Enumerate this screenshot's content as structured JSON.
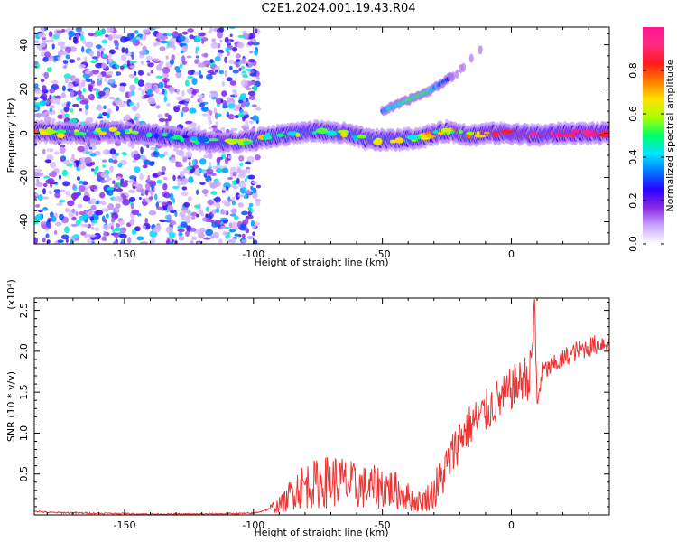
{
  "title": "C2E1.2024.001.19.43.R04",
  "chart_data": [
    {
      "type": "heatmap",
      "xlabel": "Height of straight line (km)",
      "ylabel": "Frequency (Hz)",
      "xlim": [
        -185,
        38
      ],
      "ylim": [
        -50,
        48
      ],
      "xticks": [
        -150,
        -100,
        -50,
        0
      ],
      "yticks": [
        -40,
        -20,
        0,
        20,
        40
      ],
      "colorbar": {
        "label": "Normalized spectral amplitude",
        "range": [
          0.0,
          1.0
        ],
        "ticks": [
          0.0,
          0.2,
          0.4,
          0.6,
          0.8
        ],
        "colormap": [
          "#ffffff",
          "#c9a6ff",
          "#8a2be2",
          "#2a00ff",
          "#0078ff",
          "#00e5ff",
          "#00ff6a",
          "#aaff00",
          "#ffe100",
          "#ff7a00",
          "#ff1a1a",
          "#ff2a80",
          "#ff1493"
        ]
      },
      "signal_track": [
        {
          "x": -185,
          "y": 1,
          "amp": 0.55
        },
        {
          "x": -175,
          "y": 0,
          "amp": 0.5
        },
        {
          "x": -165,
          "y": 0,
          "amp": 0.5
        },
        {
          "x": -155,
          "y": 1,
          "amp": 0.45
        },
        {
          "x": -145,
          "y": 0,
          "amp": 0.35
        },
        {
          "x": -130,
          "y": -2,
          "amp": 0.3
        },
        {
          "x": -115,
          "y": -4,
          "amp": 0.3
        },
        {
          "x": -105,
          "y": -4,
          "amp": 0.45
        },
        {
          "x": -95,
          "y": -2,
          "amp": 0.45
        },
        {
          "x": -85,
          "y": 0,
          "amp": 0.45
        },
        {
          "x": -75,
          "y": 1,
          "amp": 0.45
        },
        {
          "x": -65,
          "y": 0,
          "amp": 0.45
        },
        {
          "x": -55,
          "y": -3,
          "amp": 0.5
        },
        {
          "x": -45,
          "y": -3,
          "amp": 0.5
        },
        {
          "x": -35,
          "y": -2,
          "amp": 0.55
        },
        {
          "x": -25,
          "y": 1,
          "amp": 0.55
        },
        {
          "x": -15,
          "y": -1,
          "amp": 0.6
        },
        {
          "x": -10,
          "y": 0,
          "amp": 0.8
        },
        {
          "x": 0,
          "y": 0,
          "amp": 0.85
        },
        {
          "x": 10,
          "y": -1,
          "amp": 0.9
        },
        {
          "x": 20,
          "y": 0,
          "amp": 0.9
        },
        {
          "x": 30,
          "y": 0,
          "amp": 0.95
        },
        {
          "x": 38,
          "y": 0,
          "amp": 0.95
        }
      ],
      "secondary_track": [
        {
          "x": -50,
          "y": 10,
          "amp": 0.3
        },
        {
          "x": -40,
          "y": 15,
          "amp": 0.45
        },
        {
          "x": -32,
          "y": 19,
          "amp": 0.4
        },
        {
          "x": -20,
          "y": 28,
          "amp": 0.1
        },
        {
          "x": -10,
          "y": 41,
          "amp": 0.05
        }
      ],
      "noise_region_x": [
        -185,
        -100
      ]
    },
    {
      "type": "line",
      "xlabel": "Height of straight line (km)",
      "ylabel": "SNR (10 * v/v)",
      "y_multiplier": "(x10⁴)",
      "xlim": [
        -185,
        38
      ],
      "ylim": [
        0,
        2.65
      ],
      "xticks": [
        -150,
        -100,
        -50,
        0
      ],
      "yticks": [
        0.5,
        1.0,
        1.5,
        2.0,
        2.5
      ],
      "ytick_labels": [
        "0.5",
        "1.0",
        "1.5",
        "2.0",
        "2.5"
      ],
      "color": "#ee3333",
      "series": [
        {
          "x": [
            -185,
            -180,
            -160,
            -140,
            -120,
            -100,
            -95,
            -90,
            -87,
            -85,
            -80,
            -75,
            -70,
            -65,
            -60,
            -55,
            -50,
            -45,
            -40,
            -37,
            -33,
            -30,
            -27,
            -25,
            -22,
            -20,
            -17,
            -15,
            -12,
            -10,
            -7,
            -5,
            -2,
            0,
            3,
            5,
            7,
            9,
            10,
            12,
            15,
            20,
            25,
            30,
            35,
            38
          ],
          "y": [
            0.05,
            0.03,
            0.02,
            0.01,
            0.01,
            0.02,
            0.06,
            0.12,
            0.18,
            0.3,
            0.36,
            0.38,
            0.42,
            0.4,
            0.35,
            0.33,
            0.35,
            0.3,
            0.22,
            0.15,
            0.2,
            0.28,
            0.45,
            0.6,
            0.8,
            0.95,
            1.05,
            1.12,
            1.2,
            1.25,
            1.35,
            1.4,
            1.45,
            1.55,
            1.6,
            1.7,
            1.65,
            2.4,
            1.35,
            1.75,
            1.8,
            1.9,
            2.0,
            2.05,
            2.1,
            2.1
          ]
        }
      ]
    }
  ]
}
